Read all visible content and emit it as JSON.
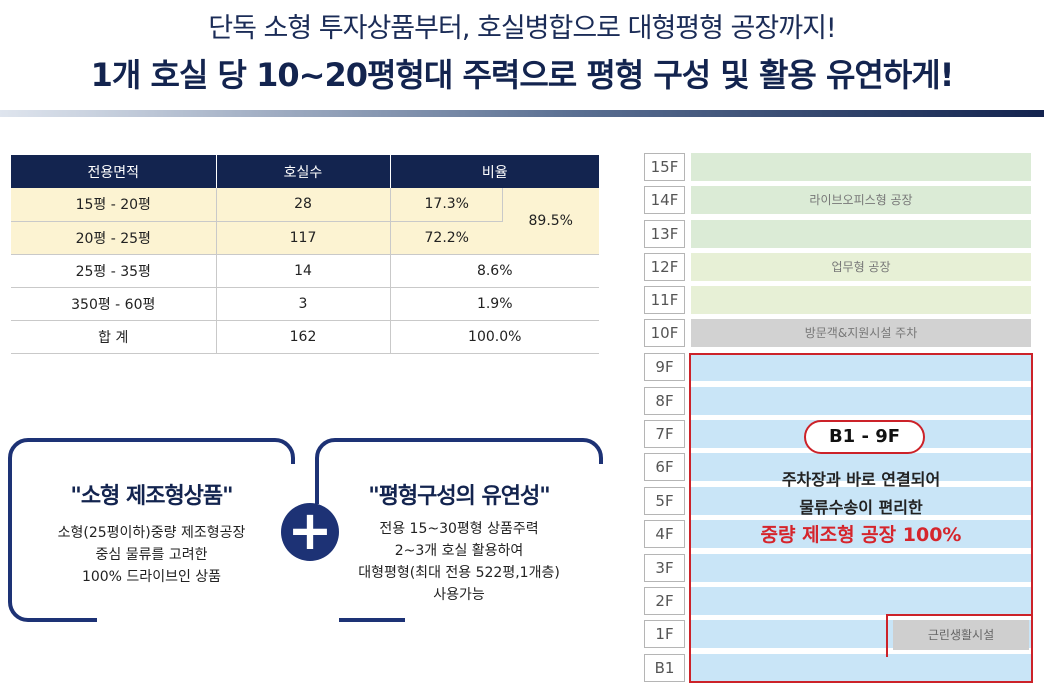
{
  "header": {
    "line1": "단독 소형 투자상품부터, 호실병합으로 대형평형 공장까지!",
    "line2": "1개 호실 당 10~20평형대 주력으로 평형 구성 및 활용 유연하게!"
  },
  "table": {
    "headers": [
      "전용면적",
      "호실수",
      "비율"
    ],
    "rows": [
      {
        "area": "15평 - 20평",
        "count": "28",
        "ratio": "17.3%"
      },
      {
        "area": "20평 - 25평",
        "count": "117",
        "ratio": "72.2%"
      },
      {
        "area": "25평 - 35평",
        "count": "14",
        "ratio": "8.6%"
      },
      {
        "area": "350평 - 60평",
        "count": "3",
        "ratio": "1.9%"
      },
      {
        "area": "합   계",
        "count": "162",
        "ratio": "100.0%"
      }
    ],
    "combined_ratio": "89.5%"
  },
  "box_left": {
    "title": "\"소형 제조형상품\"",
    "lines": [
      "소형(25평이하)중량 제조형공장",
      "중심 물류를 고려한",
      "100% 드라이브인 상품"
    ]
  },
  "box_right": {
    "title": "\"평형구성의 유연성\"",
    "lines": [
      "전용 15~30평형 상품주력",
      "2~3개 호실 활용하여",
      "대형평형(최대 전용 522평,1개층)",
      "사용가능"
    ]
  },
  "plus_symbol": "+",
  "building": {
    "floors": [
      "15F",
      "14F",
      "13F",
      "12F",
      "11F",
      "10F",
      "9F",
      "8F",
      "7F",
      "6F",
      "5F",
      "4F",
      "3F",
      "2F",
      "1F",
      "B1"
    ],
    "zone_live_office": "라이브오피스형 공장",
    "zone_business": "업무형 공장",
    "zone_parking": "방문객&지원시설 주차",
    "zone_facility": "근린생활시설",
    "main_range": "B1 - 9F",
    "main_line1": "주차장과 바로 연결되어",
    "main_line2": "물류수송이 편리한",
    "main_highlight": "중량 제조형 공장 100%"
  },
  "colors": {
    "navy": "#13244f",
    "accent_red": "#cc2229",
    "highlight_row": "#fcf3d2",
    "floor_blue": "#c9e5f7",
    "floor_green": "#dbebd6",
    "floor_lime": "#e7f0d6",
    "floor_gray": "#d2d2d2"
  }
}
